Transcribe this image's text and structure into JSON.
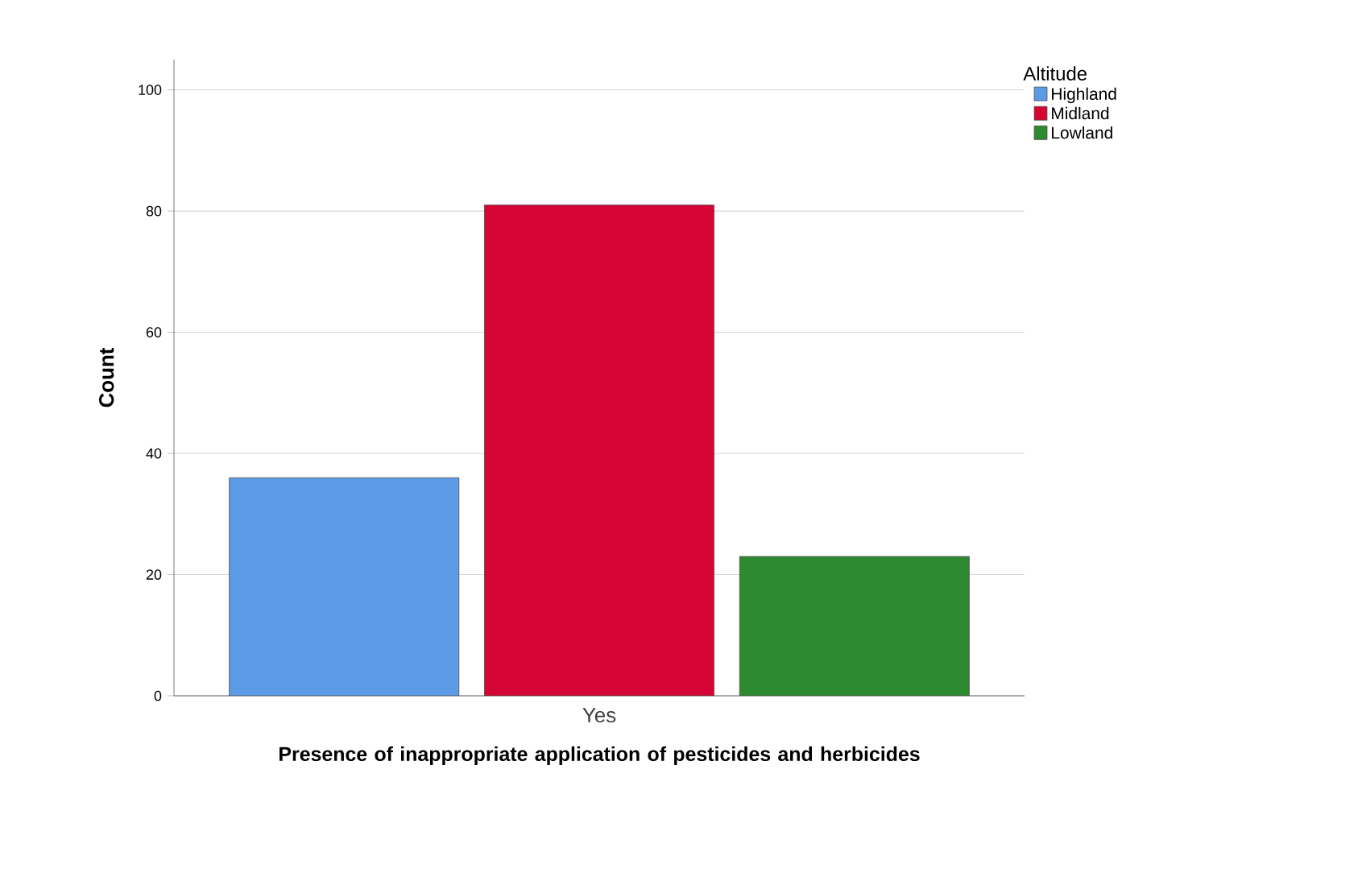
{
  "chart_data": {
    "type": "bar",
    "xlabel": "Presence of inappropriate application of pesticides and herbicides",
    "ylabel": "Count",
    "legend_title": "Altitude",
    "categories": [
      "Yes"
    ],
    "series": [
      {
        "name": "Highland",
        "color": "#5b9be6",
        "values": [
          36
        ]
      },
      {
        "name": "Midland",
        "color": "#d50535",
        "values": [
          81
        ]
      },
      {
        "name": "Lowland",
        "color": "#2e8a2e",
        "values": [
          23
        ]
      }
    ],
    "ylim": [
      0,
      105
    ],
    "yticks": [
      0,
      20,
      40,
      60,
      80,
      100
    ],
    "grid": "y",
    "legend": "top right"
  }
}
